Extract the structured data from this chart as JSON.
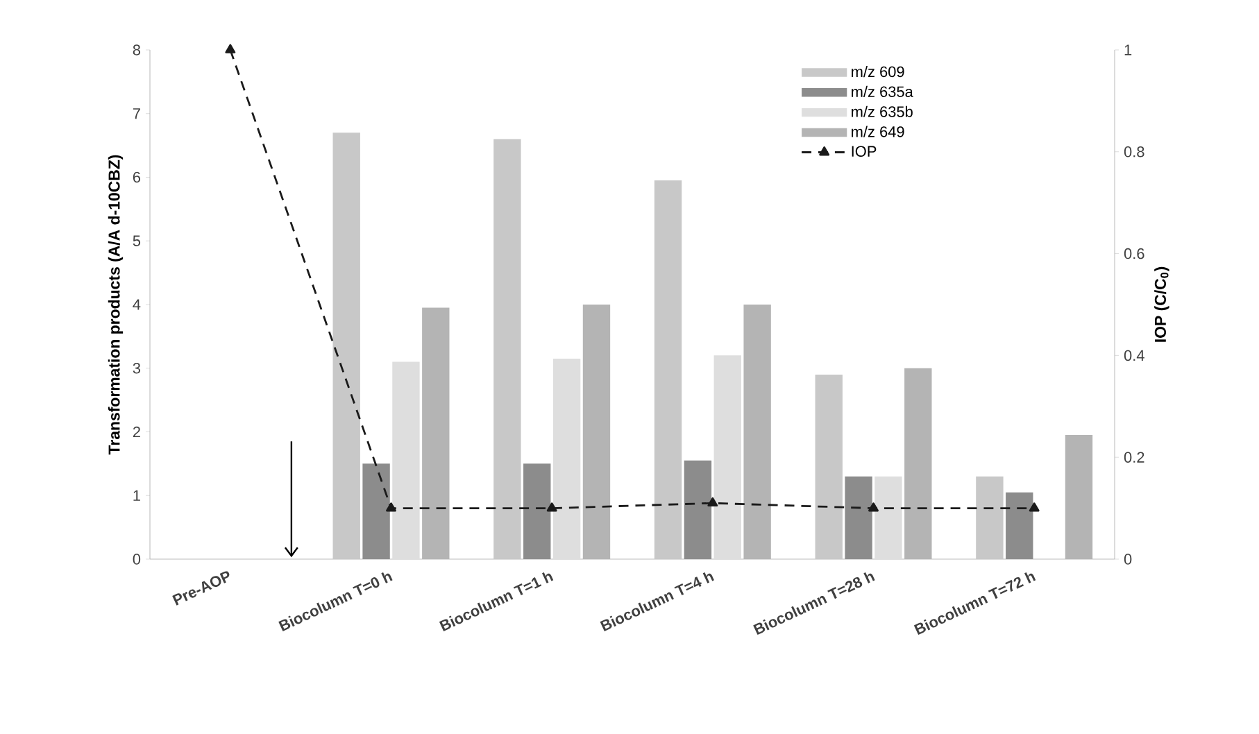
{
  "chart_data": {
    "type": "bar",
    "xlabel": null,
    "ylabel": "Transformation products (A/A d-10CBZ)",
    "y2label": "IOP (C/C$_{0}$)",
    "categories": [
      "Pre-AOP",
      "Biocolumn T=0 h",
      "Biocolumn T=1 h",
      "Biocolumn T=4 h",
      "Biocolumn T=28 h",
      "Biocolumn T=72 h"
    ],
    "series": [
      {
        "name": "m/z 609",
        "color": "#c8c8c8",
        "values": [
          null,
          6.7,
          6.6,
          5.95,
          2.9,
          1.3
        ]
      },
      {
        "name": "m/z 635a",
        "color": "#8c8c8c",
        "values": [
          0,
          1.5,
          1.5,
          1.55,
          1.3,
          1.05
        ]
      },
      {
        "name": "m/z 635b",
        "color": "#dedede",
        "values": [
          0,
          3.1,
          3.15,
          3.2,
          1.3,
          0
        ]
      },
      {
        "name": "m/z 649",
        "color": "#b4b4b4",
        "values": [
          0,
          3.95,
          4.0,
          4.0,
          3.0,
          1.95
        ]
      },
      {
        "name": "IOP",
        "type": "line",
        "axis": "y2",
        "color": "#1a1a1a",
        "marker": "triangle",
        "line_style": "dashed",
        "values": [
          1.0,
          0.1,
          0.1,
          0.11,
          0.1,
          0.1
        ]
      }
    ],
    "ylim": [
      0,
      8
    ],
    "yticks": [
      0,
      1,
      2,
      3,
      4,
      5,
      6,
      7,
      8
    ],
    "y2lim": [
      0,
      1
    ],
    "y2ticks": [
      0,
      0.2,
      0.4,
      0.6,
      0.8,
      1
    ],
    "legend": "top right",
    "grid": false
  }
}
